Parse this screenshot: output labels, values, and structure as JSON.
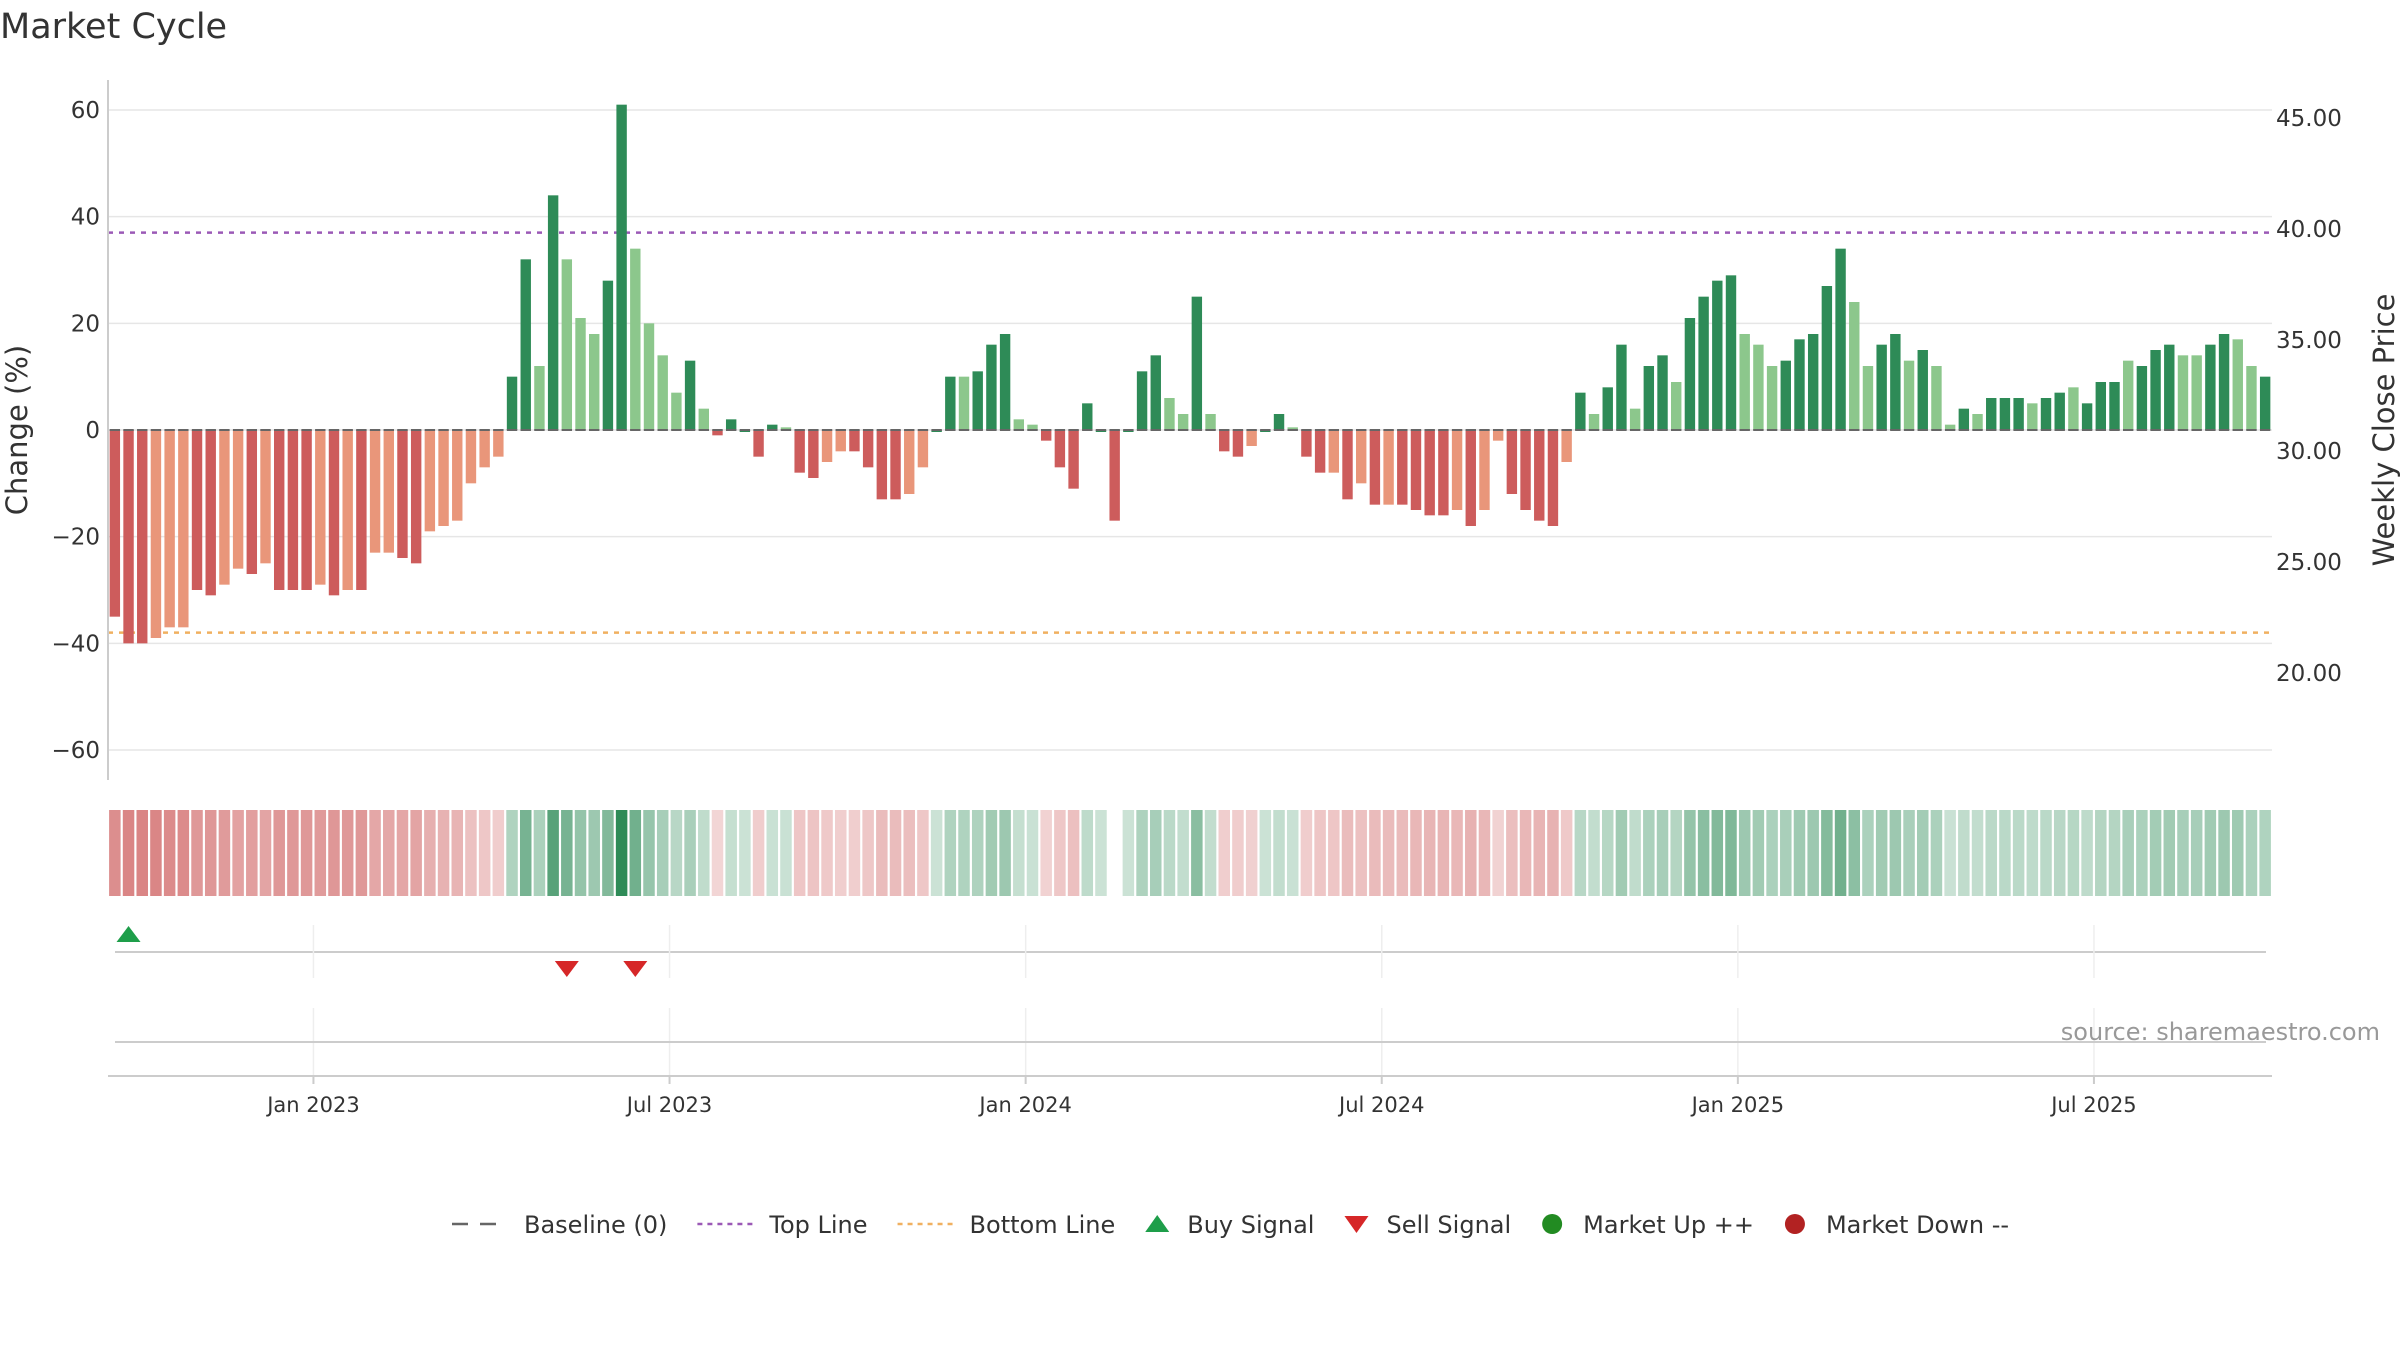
{
  "title": "Market Cycle",
  "source": "source: sharemaestro.com",
  "colors": {
    "up_strong": "#2e8b57",
    "up_weak": "#8cc78c",
    "down_strong": "#cd5c5c",
    "down_weak": "#e9967a",
    "top_line": "#9b59b6",
    "bottom_line": "#f0b060",
    "baseline": "#666666",
    "buy": "#1e9e4a",
    "sell": "#d62728",
    "market_up": "#228b22",
    "market_down": "#b22222"
  },
  "chart_data": {
    "type": "bar",
    "ylabel": "Change (%)",
    "y2label": "Weekly Close Price",
    "ylim": [
      -66,
      66
    ],
    "y_ticks": [
      60,
      40,
      20,
      0,
      -20,
      -40,
      -60
    ],
    "y_tick_labels": [
      "60",
      "40",
      "20",
      "0",
      "−20",
      "−40",
      "−60"
    ],
    "y2_ticks": [
      "45.00",
      "40.00",
      "35.00",
      "30.00",
      "25.00",
      "20.00"
    ],
    "x_tick_labels": [
      "Jan 2023",
      "Jul 2023",
      "Jan 2024",
      "Jul 2024",
      "Jan 2025",
      "Jul 2025"
    ],
    "x_tick_index": [
      15,
      41,
      67,
      93,
      119,
      145
    ],
    "top_line": 37,
    "bottom_line": -38,
    "values": [
      -35,
      -40,
      -40,
      -39,
      -37,
      -37,
      -30,
      -31,
      -29,
      -26,
      -27,
      -25,
      -30,
      -30,
      -30,
      -29,
      -31,
      -30,
      -30,
      -23,
      -23,
      -24,
      -25,
      -19,
      -18,
      -17,
      -10,
      -7,
      -5,
      10,
      32,
      12,
      44,
      32,
      21,
      18,
      28,
      61,
      34,
      20,
      14,
      7,
      13,
      4,
      -1,
      2,
      0,
      -5,
      1,
      0.5,
      -8,
      -9,
      -6,
      -4,
      -4,
      -7,
      -13,
      -13,
      -12,
      -7,
      0,
      10,
      10,
      11,
      16,
      18,
      2,
      1,
      -2,
      -7,
      -11,
      5,
      0,
      -17,
      0,
      11,
      14,
      6,
      3,
      25,
      3,
      -4,
      -5,
      -3,
      0,
      3,
      0.5,
      -5,
      -8,
      -8,
      -13,
      -10,
      -14,
      -14,
      -14,
      -15,
      -16,
      -16,
      -15,
      -18,
      -15,
      -2,
      -12,
      -15,
      -17,
      -18,
      -6,
      7,
      3,
      8,
      16,
      4,
      12,
      14,
      9,
      21,
      25,
      28,
      29,
      18,
      16,
      12,
      13,
      17,
      18,
      27,
      34,
      24,
      12,
      16,
      18,
      13,
      15,
      12,
      1,
      4,
      3,
      6,
      6,
      6,
      5,
      6,
      7,
      8,
      5,
      9,
      9,
      13,
      12,
      15,
      16,
      14,
      14,
      16,
      18,
      17,
      12,
      10
    ],
    "strength": [
      1,
      1,
      1,
      0,
      0,
      0,
      1,
      1,
      0,
      0,
      1,
      0,
      1,
      1,
      1,
      0,
      1,
      0,
      1,
      0,
      0,
      1,
      1,
      0,
      0,
      0,
      0,
      0,
      0,
      1,
      1,
      0,
      1,
      0,
      0,
      0,
      1,
      1,
      0,
      0,
      0,
      0,
      1,
      0,
      1,
      1,
      1,
      1,
      1,
      0,
      1,
      1,
      0,
      0,
      1,
      1,
      1,
      1,
      0,
      0,
      1,
      1,
      0,
      1,
      1,
      1,
      0,
      0,
      1,
      1,
      1,
      1,
      1,
      1,
      1,
      1,
      1,
      0,
      0,
      1,
      0,
      1,
      1,
      0,
      1,
      1,
      0,
      1,
      1,
      0,
      1,
      0,
      1,
      0,
      1,
      1,
      1,
      1,
      0,
      1,
      0,
      0,
      1,
      1,
      1,
      1,
      0,
      1,
      0,
      1,
      1,
      0,
      1,
      1,
      0,
      1,
      1,
      1,
      1,
      0,
      0,
      0,
      1,
      1,
      1,
      1,
      1,
      0,
      0,
      1,
      1,
      0,
      1,
      0,
      0,
      1,
      0,
      1,
      1,
      1,
      0,
      1,
      1,
      0,
      1,
      1,
      1,
      0,
      1,
      1,
      1,
      0,
      0,
      1,
      1,
      0,
      0,
      1
    ],
    "heat_gap_index": [
      73
    ],
    "buy_signals": [
      1
    ],
    "sell_signals": [
      33,
      38
    ],
    "legend": [
      "Baseline (0)",
      "Top Line",
      "Bottom Line",
      "Buy Signal",
      "Sell Signal",
      "Market Up ++",
      "Market Down --"
    ],
    "legend_placement": "bottom-center",
    "grid": true
  }
}
